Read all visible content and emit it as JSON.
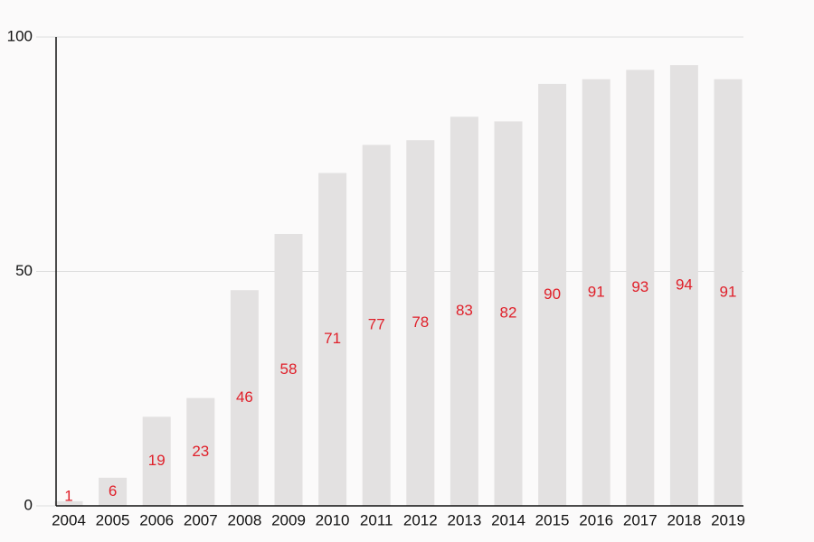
{
  "chart_data": {
    "type": "bar",
    "categories": [
      "2004",
      "2005",
      "2006",
      "2007",
      "2008",
      "2009",
      "2010",
      "2011",
      "2012",
      "2013",
      "2014",
      "2015",
      "2016",
      "2017",
      "2018",
      "2019"
    ],
    "values": [
      1,
      6,
      19,
      23,
      46,
      58,
      71,
      77,
      78,
      83,
      82,
      90,
      91,
      93,
      94,
      91
    ],
    "color": "#e3e1e1",
    "label_color": "#e0202a",
    "ylim": [
      0,
      100
    ],
    "yticks": [
      0,
      50,
      100
    ],
    "grid": true
  }
}
